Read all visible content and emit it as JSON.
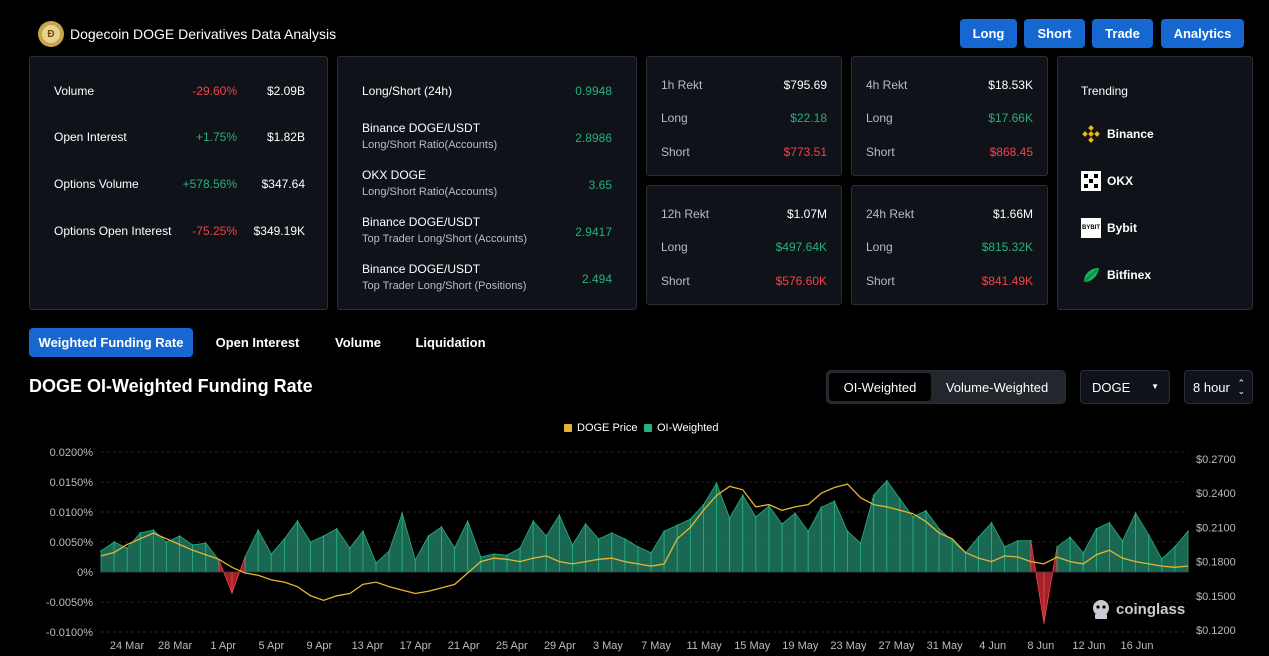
{
  "header": {
    "title": "Dogecoin DOGE Derivatives Data Analysis",
    "buttons": [
      "Long",
      "Short",
      "Trade",
      "Analytics"
    ]
  },
  "stats": [
    {
      "label": "Volume",
      "change": "-29.60%",
      "value": "$2.09B"
    },
    {
      "label": "Open Interest",
      "change": "+1.75%",
      "value": "$1.82B"
    },
    {
      "label": "Options Volume",
      "change": "+578.56%",
      "value": "$347.64"
    },
    {
      "label": "Options Open Interest",
      "change": "-75.25%",
      "value": "$349.19K"
    }
  ],
  "ratios": [
    {
      "title": "Long/Short (24h)",
      "sub": "",
      "value": "0.9948"
    },
    {
      "title": "Binance DOGE/USDT",
      "sub": "Long/Short Ratio(Accounts)",
      "value": "2.8986"
    },
    {
      "title": "OKX DOGE",
      "sub": "Long/Short Ratio(Accounts)",
      "value": "3.65"
    },
    {
      "title": "Binance DOGE/USDT",
      "sub": "Top Trader Long/Short (Accounts)",
      "value": "2.9417"
    },
    {
      "title": "Binance DOGE/USDT",
      "sub": "Top Trader Long/Short (Positions)",
      "value": "2.494"
    }
  ],
  "rekt": [
    {
      "label": "1h Rekt",
      "total": "$795.69",
      "long_label": "Long",
      "long": "$22.18",
      "short_label": "Short",
      "short": "$773.51"
    },
    {
      "label": "4h Rekt",
      "total": "$18.53K",
      "long_label": "Long",
      "long": "$17.66K",
      "short_label": "Short",
      "short": "$868.45"
    },
    {
      "label": "12h Rekt",
      "total": "$1.07M",
      "long_label": "Long",
      "long": "$497.64K",
      "short_label": "Short",
      "short": "$576.60K"
    },
    {
      "label": "24h Rekt",
      "total": "$1.66M",
      "long_label": "Long",
      "long": "$815.32K",
      "short_label": "Short",
      "short": "$841.49K"
    }
  ],
  "trending": {
    "title": "Trending",
    "items": [
      "Binance",
      "OKX",
      "Bybit",
      "Bitfinex"
    ],
    "bybit_logo_text": "BYBIT"
  },
  "tabs": [
    "Weighted Funding Rate",
    "Open Interest",
    "Volume",
    "Liquidation"
  ],
  "chart_header": {
    "title": "DOGE OI-Weighted Funding Rate",
    "seg": [
      "OI-Weighted",
      "Volume-Weighted"
    ],
    "coin_select": "DOGE",
    "interval_select": "8 hour"
  },
  "colors": {
    "accent": "#1767d1",
    "pos": "#26b07c",
    "neg": "#f5424b",
    "price": "#e6b432"
  },
  "chart_data": {
    "type": "area",
    "legend": [
      "DOGE Price",
      "OI-Weighted"
    ],
    "watermark": "coinglass",
    "x_ticks": [
      "24 Mar",
      "28 Mar",
      "1 Apr",
      "5 Apr",
      "9 Apr",
      "13 Apr",
      "17 Apr",
      "21 Apr",
      "25 Apr",
      "29 Apr",
      "3 May",
      "7 May",
      "11 May",
      "15 May",
      "19 May",
      "23 May",
      "27 May",
      "31 May",
      "4 Jun",
      "8 Jun",
      "12 Jun",
      "16 Jun"
    ],
    "y_left_ticks": [
      "0.0200%",
      "0.0150%",
      "0.0100%",
      "0.0050%",
      "0%",
      "-0.0050%",
      "-0.0100%"
    ],
    "y_left_range": [
      -0.01,
      0.02
    ],
    "y_right_ticks": [
      "$0.2700",
      "$0.2400",
      "$0.2100",
      "$0.1800",
      "$0.1500",
      "$0.1200"
    ],
    "y_right_range": [
      0.12,
      0.27
    ],
    "funding_rate": [
      0.0035,
      0.005,
      0.004,
      0.0065,
      0.007,
      0.005,
      0.006,
      0.0045,
      0.0048,
      0.002,
      -0.0035,
      0.0025,
      0.007,
      0.003,
      0.0055,
      0.0085,
      0.005,
      0.006,
      0.0072,
      0.004,
      0.0068,
      0.0015,
      0.0035,
      0.0098,
      0.002,
      0.006,
      0.0075,
      0.004,
      0.0085,
      0.0025,
      0.003,
      0.0028,
      0.004,
      0.0085,
      0.006,
      0.0095,
      0.0045,
      0.008,
      0.0055,
      0.0065,
      0.0055,
      0.0042,
      0.0032,
      0.0068,
      0.0078,
      0.0088,
      0.0112,
      0.0148,
      0.009,
      0.0128,
      0.0092,
      0.011,
      0.008,
      0.0098,
      0.0068,
      0.0108,
      0.0118,
      0.0068,
      0.0048,
      0.0128,
      0.0152,
      0.0122,
      0.0092,
      0.0102,
      0.0072,
      0.0052,
      0.0032,
      0.0058,
      0.0082,
      0.0042,
      0.0052,
      0.0052,
      -0.0085,
      0.0042,
      0.0058,
      0.0032,
      0.0072,
      0.0082,
      0.0052,
      0.0098,
      0.0062,
      0.0022,
      0.0042,
      0.0068
    ],
    "doge_price": [
      0.185,
      0.188,
      0.195,
      0.2,
      0.205,
      0.2,
      0.195,
      0.19,
      0.186,
      0.182,
      0.175,
      0.17,
      0.168,
      0.164,
      0.162,
      0.158,
      0.15,
      0.146,
      0.15,
      0.152,
      0.16,
      0.162,
      0.158,
      0.155,
      0.152,
      0.154,
      0.157,
      0.16,
      0.17,
      0.18,
      0.183,
      0.182,
      0.18,
      0.183,
      0.185,
      0.18,
      0.178,
      0.18,
      0.182,
      0.183,
      0.18,
      0.178,
      0.176,
      0.178,
      0.2,
      0.21,
      0.225,
      0.238,
      0.246,
      0.243,
      0.228,
      0.23,
      0.225,
      0.228,
      0.23,
      0.24,
      0.245,
      0.248,
      0.236,
      0.23,
      0.228,
      0.225,
      0.222,
      0.215,
      0.205,
      0.2,
      0.188,
      0.183,
      0.18,
      0.185,
      0.184,
      0.18,
      0.178,
      0.184,
      0.18,
      0.178,
      0.186,
      0.19,
      0.183,
      0.18,
      0.178,
      0.176,
      0.175,
      0.176
    ]
  }
}
